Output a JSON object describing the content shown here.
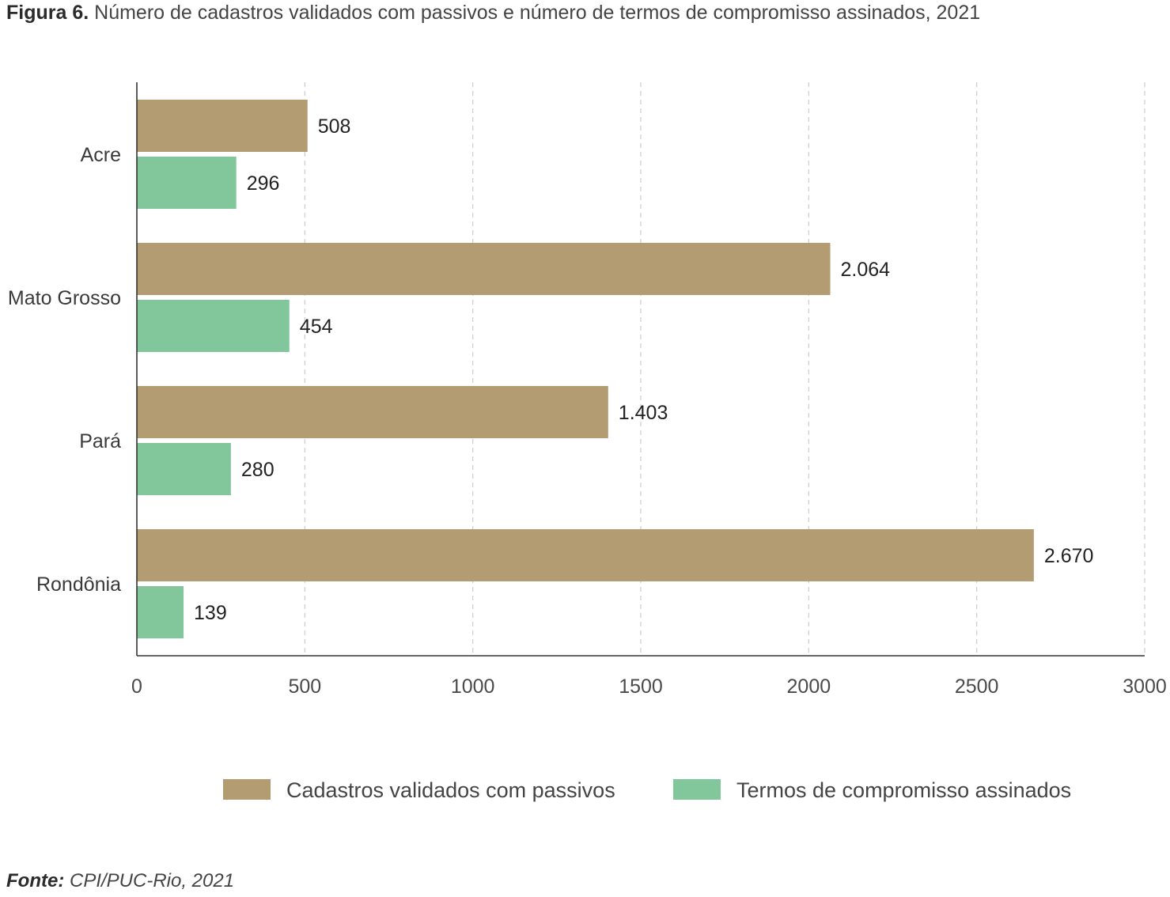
{
  "title": {
    "prefix": "Figura 6.",
    "text": "Número de cadastros validados com passivos e número de termos de compromisso assinados, 2021"
  },
  "source": {
    "prefix": "Fonte:",
    "text": "CPI/PUC-Rio, 2021"
  },
  "chart_data": {
    "type": "bar",
    "orientation": "horizontal",
    "categories": [
      "Acre",
      "Mato Grosso",
      "Pará",
      "Rondônia"
    ],
    "series": [
      {
        "name": "Cadastros validados com passivos",
        "color": "#b39b72",
        "values": [
          508,
          2064,
          1403,
          2670
        ],
        "labels": [
          "508",
          "2.064",
          "1.403",
          "2.670"
        ]
      },
      {
        "name": "Termos de compromisso assinados",
        "color": "#82c79b",
        "values": [
          296,
          454,
          280,
          139
        ],
        "labels": [
          "296",
          "454",
          "280",
          "139"
        ]
      }
    ],
    "xlim": [
      0,
      3000
    ],
    "xticks": [
      "0",
      "500",
      "1000",
      "1500",
      "2000",
      "2500",
      "3000"
    ],
    "grid": "vertical dashed",
    "legend": "bottom"
  }
}
